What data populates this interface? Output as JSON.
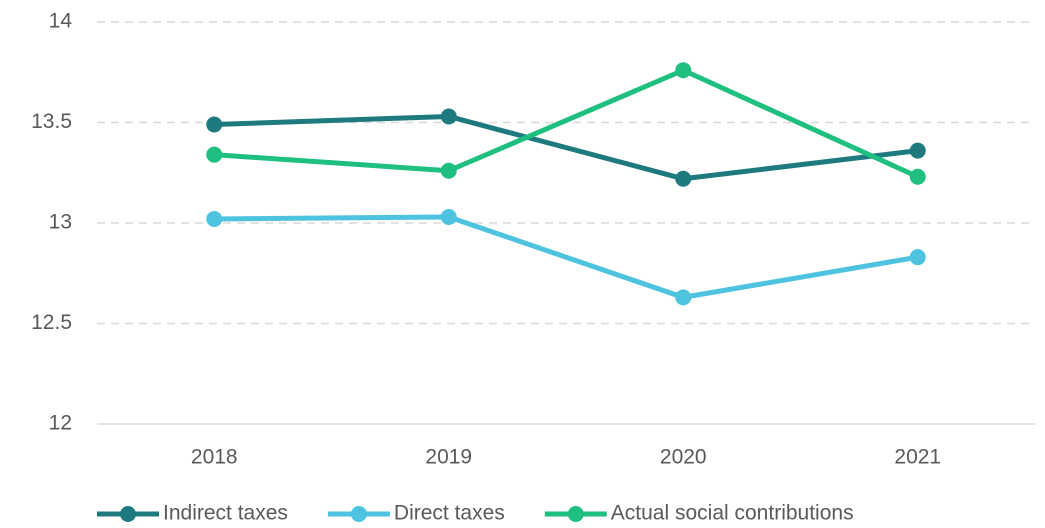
{
  "chart_data": {
    "type": "line",
    "categories": [
      "2018",
      "2019",
      "2020",
      "2021"
    ],
    "series": [
      {
        "name": "Indirect taxes",
        "color": "#1f7a80",
        "values": [
          13.49,
          13.53,
          13.22,
          13.36
        ]
      },
      {
        "name": "Direct taxes",
        "color": "#4dc3e0",
        "values": [
          13.02,
          13.03,
          12.63,
          12.83
        ]
      },
      {
        "name": "Actual social contributions",
        "color": "#1fbf7f",
        "values": [
          13.34,
          13.26,
          13.76,
          13.23
        ]
      }
    ],
    "ylim": [
      12,
      14
    ],
    "yticks": [
      12,
      12.5,
      13,
      13.5,
      14
    ],
    "grid": true,
    "legend": "bottom"
  }
}
